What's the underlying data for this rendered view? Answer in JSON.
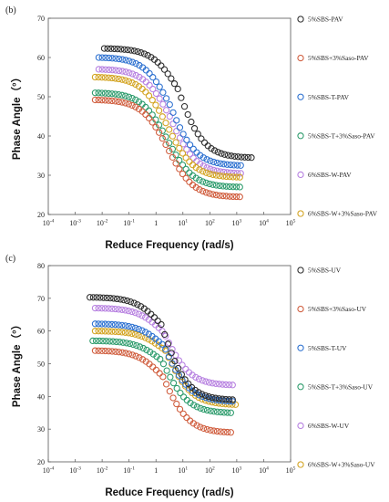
{
  "chart_data": [
    {
      "type": "scatter",
      "panel_label": "(b)",
      "xlabel": "Reduce Frequency (rad/s)",
      "ylabel": "Phase Angle（°）",
      "x_scale": "log",
      "xlim": [
        0.0001,
        100000
      ],
      "ylim": [
        20,
        70
      ],
      "x_ticks": [
        0.0001,
        0.001,
        0.01,
        0.1,
        1,
        10,
        100,
        1000,
        10000,
        100000
      ],
      "x_tick_labels": [
        "10^-4",
        "10^-3",
        "10^-2",
        "10^-1",
        "1",
        "10^1",
        "10^2",
        "10^3",
        "10^4",
        "10^5"
      ],
      "y_ticks": [
        20,
        30,
        40,
        50,
        60,
        70
      ],
      "legend_position": "right",
      "series": [
        {
          "name": "5%SBS-PAV",
          "color": "#2b2b2b",
          "x_range": [
            0.012,
            3500
          ],
          "y_start": 62.3,
          "y_mid": 52,
          "y_end": 34.5
        },
        {
          "name": "5%SBS+3%Saso-PAV",
          "color": "#cf5a3a",
          "x_range": [
            0.0055,
            1300
          ],
          "y_start": 49.2,
          "y_mid": 37,
          "y_end": 24.5
        },
        {
          "name": "5%SBS-T-PAV",
          "color": "#2a6fd0",
          "x_range": [
            0.0075,
            1400
          ],
          "y_start": 60,
          "y_mid": 48,
          "y_end": 32.5
        },
        {
          "name": "5%SBS-T+3%Saso-PAV",
          "color": "#2a9a6a",
          "x_range": [
            0.0055,
            1300
          ],
          "y_start": 51,
          "y_mid": 39,
          "y_end": 27
        },
        {
          "name": "6%SBS-W-PAV",
          "color": "#b67fe0",
          "x_range": [
            0.0075,
            1400
          ],
          "y_start": 57,
          "y_mid": 45,
          "y_end": 30.5
        },
        {
          "name": "6%SBS-W+3%Saso-PAV",
          "color": "#d2a21e",
          "x_range": [
            0.0055,
            1300
          ],
          "y_start": 55,
          "y_mid": 42.5,
          "y_end": 29.5
        }
      ]
    },
    {
      "type": "scatter",
      "panel_label": "(c)",
      "xlabel": "Reduce Frequency (rad/s)",
      "ylabel": "Phase Angle（°）",
      "x_scale": "log",
      "xlim": [
        0.0001,
        100000
      ],
      "ylim": [
        20,
        80
      ],
      "x_ticks": [
        0.0001,
        0.001,
        0.01,
        0.1,
        1,
        10,
        100,
        1000,
        10000,
        100000
      ],
      "x_tick_labels": [
        "10^-4",
        "10^-3",
        "10^-2",
        "10^-1",
        "1",
        "10^1",
        "10^2",
        "10^3",
        "10^4",
        "10^5"
      ],
      "y_ticks": [
        20,
        30,
        40,
        50,
        60,
        70,
        80
      ],
      "legend_position": "right",
      "series": [
        {
          "name": "5%SBS-UV",
          "color": "#2b2b2b",
          "x_range": [
            0.0035,
            700
          ],
          "y_start": 70.3,
          "y_mid": 62,
          "y_end": 39
        },
        {
          "name": "5%SBS+3%Saso-UV",
          "color": "#cf5a3a",
          "x_range": [
            0.0055,
            600
          ],
          "y_start": 54,
          "y_mid": 46,
          "y_end": 29
        },
        {
          "name": "5%SBS-T-UV",
          "color": "#2a6fd0",
          "x_range": [
            0.0055,
            700
          ],
          "y_start": 62.2,
          "y_mid": 55.5,
          "y_end": 38.5
        },
        {
          "name": "5%SBS-T+3%Saso-UV",
          "color": "#2a9a6a",
          "x_range": [
            0.0045,
            600
          ],
          "y_start": 57,
          "y_mid": 51,
          "y_end": 35
        },
        {
          "name": "6%SBS-W-UV",
          "color": "#b67fe0",
          "x_range": [
            0.0055,
            700
          ],
          "y_start": 67,
          "y_mid": 59.5,
          "y_end": 43.5
        },
        {
          "name": "6%SBS-W+3%Saso-UV",
          "color": "#d2a21e",
          "x_range": [
            0.0055,
            900
          ],
          "y_start": 60,
          "y_mid": 54,
          "y_end": 37.5
        }
      ]
    }
  ]
}
